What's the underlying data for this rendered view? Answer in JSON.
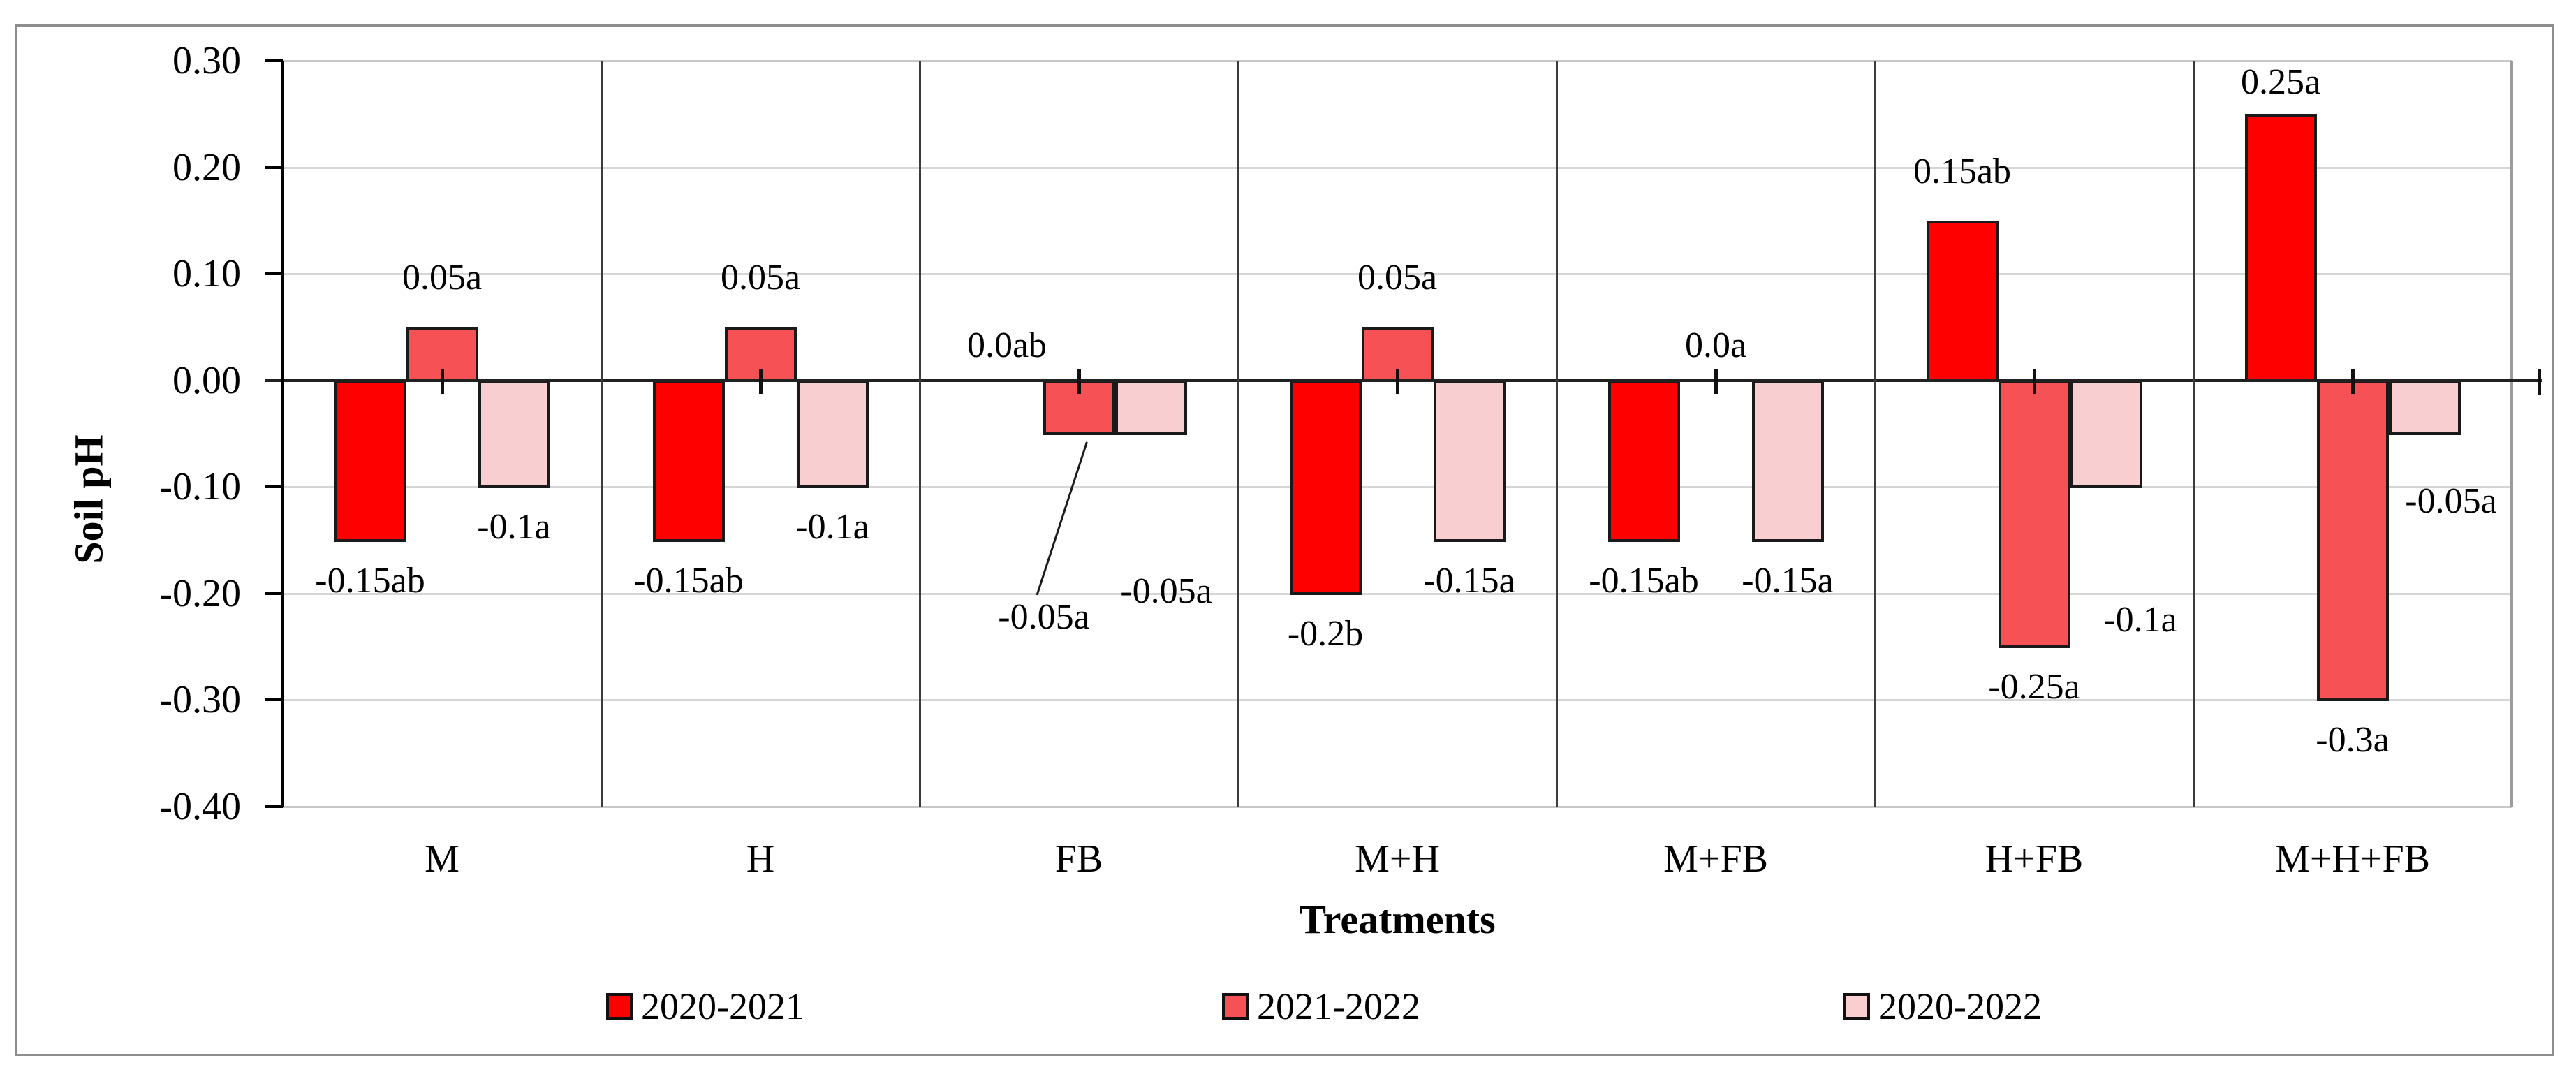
{
  "figure": {
    "background": "#FFFFFF",
    "border_color": "#8E8E8E"
  },
  "colors": {
    "series_2020_2021": "#FE0000",
    "series_2021_2022": "#F65256",
    "series_2020_2022": "#F8CED0",
    "bar_outline": "#1A1A1A",
    "gridline": "#D6D6D6",
    "zero_line": "#212121",
    "panel_divider": "#3C3C3C",
    "axis": "#000000",
    "text": "#000000"
  },
  "chart_data": {
    "type": "bar",
    "title": "",
    "xlabel": "Treatments",
    "ylabel": "Soil pH",
    "ylim": [
      -0.4,
      0.3
    ],
    "ytick_step": 0.1,
    "ytick_labels": [
      "0.30",
      "0.20",
      "0.10",
      "0.00",
      "-0.10",
      "-0.20",
      "-0.30",
      "-0.40"
    ],
    "grid": true,
    "legend_position": "bottom",
    "categories": [
      "M",
      "H",
      "FB",
      "M+H",
      "M+FB",
      "H+FB",
      "M+H+FB"
    ],
    "series": [
      {
        "name": "2020-2021",
        "color": "#FE0000",
        "values": [
          -0.15,
          -0.15,
          0.0,
          -0.2,
          -0.15,
          0.15,
          0.25
        ],
        "labels": [
          "-0.15ab",
          "-0.15ab",
          "0.0ab",
          "-0.2b",
          "-0.15ab",
          "0.15ab",
          "0.25a"
        ],
        "label_adjust": [
          null,
          null,
          {
            "dy": 20
          },
          null,
          null,
          null,
          {
            "dy": 25
          }
        ]
      },
      {
        "name": "2021-2022",
        "color": "#F65256",
        "values": [
          0.05,
          0.05,
          -0.05,
          0.05,
          0.0,
          -0.25,
          -0.3
        ],
        "labels": [
          "0.05a",
          "0.05a",
          "-0.05a",
          "0.05a",
          "0.0a",
          "-0.25a",
          "-0.3a"
        ],
        "label_adjust": [
          null,
          null,
          {
            "dx": -50,
            "dy": 205,
            "leader": true
          },
          null,
          {
            "dy": 20
          },
          null,
          null
        ]
      },
      {
        "name": "2020-2022",
        "color": "#F8CED0",
        "values": [
          -0.1,
          -0.1,
          -0.05,
          -0.15,
          -0.15,
          -0.1,
          -0.05
        ],
        "labels": [
          "-0.1a",
          "-0.1a",
          "-0.05a",
          "-0.15a",
          "-0.15a",
          "-0.1a",
          "-0.05a"
        ],
        "label_adjust": [
          null,
          null,
          {
            "dx": 22,
            "dy": 168
          },
          null,
          null,
          {
            "dx": 49,
            "dy": 133
          },
          {
            "dx": 38,
            "dy": 39
          }
        ]
      }
    ]
  },
  "legend": {
    "items": [
      "2020-2021",
      "2021-2022",
      "2020-2022"
    ]
  }
}
